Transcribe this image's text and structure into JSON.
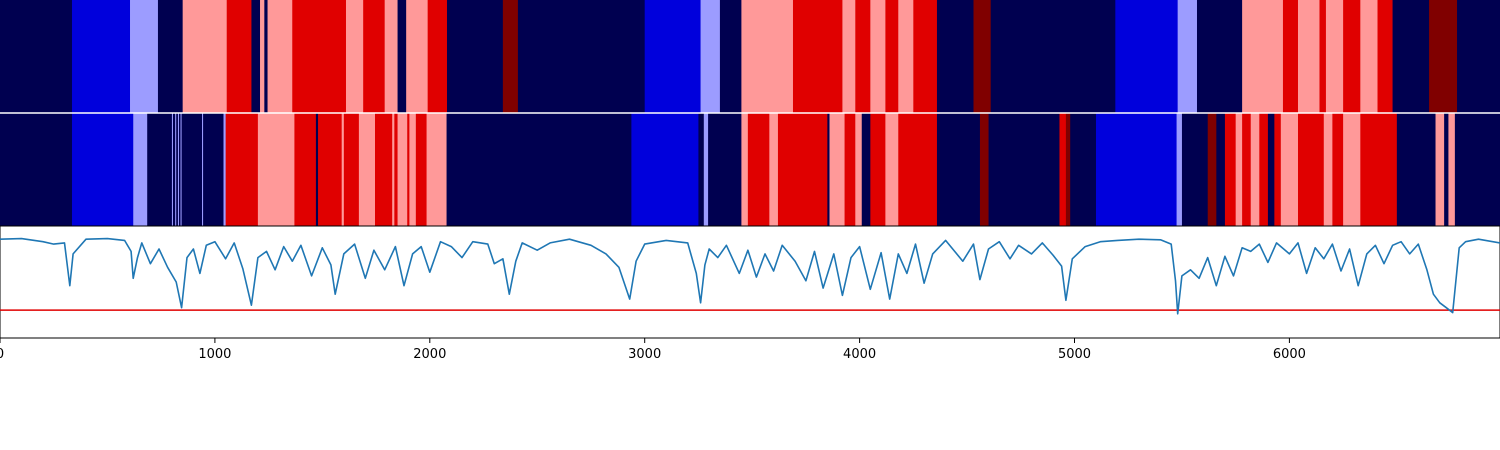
{
  "chart_data": {
    "type": "heatmap",
    "title": "",
    "xlabel": "",
    "ylabel": "",
    "xlim": [
      0,
      6980
    ],
    "x_ticks": [
      0,
      1000,
      2000,
      3000,
      4000,
      5000,
      6000
    ],
    "tick_labels": [
      "0",
      "1000",
      "2000",
      "3000",
      "4000",
      "5000",
      "6000"
    ],
    "colors": {
      "navy": "#000050",
      "blue": "#0000dc",
      "lightblue": "#9c9cff",
      "pink": "#ff9999",
      "red": "#e00000",
      "darkred": "#800000",
      "line": "#1f77b4",
      "threshold": "#e00000"
    },
    "strip_top": [
      [
        0,
        335,
        "navy"
      ],
      [
        335,
        605,
        "blue"
      ],
      [
        605,
        735,
        "lightblue"
      ],
      [
        735,
        850,
        "navy"
      ],
      [
        850,
        1055,
        "pink"
      ],
      [
        1055,
        1170,
        "red"
      ],
      [
        1170,
        1210,
        "navy"
      ],
      [
        1210,
        1230,
        "pink"
      ],
      [
        1230,
        1245,
        "navy"
      ],
      [
        1245,
        1360,
        "pink"
      ],
      [
        1360,
        1610,
        "red"
      ],
      [
        1610,
        1690,
        "pink"
      ],
      [
        1690,
        1790,
        "red"
      ],
      [
        1790,
        1850,
        "pink"
      ],
      [
        1850,
        1890,
        "navy"
      ],
      [
        1890,
        1990,
        "pink"
      ],
      [
        1990,
        2080,
        "red"
      ],
      [
        2080,
        2340,
        "navy"
      ],
      [
        2340,
        2410,
        "darkred"
      ],
      [
        2410,
        3000,
        "navy"
      ],
      [
        3000,
        3260,
        "blue"
      ],
      [
        3260,
        3350,
        "lightblue"
      ],
      [
        3350,
        3450,
        "navy"
      ],
      [
        3450,
        3690,
        "pink"
      ],
      [
        3690,
        3920,
        "red"
      ],
      [
        3920,
        3980,
        "pink"
      ],
      [
        3980,
        4050,
        "red"
      ],
      [
        4050,
        4120,
        "pink"
      ],
      [
        4120,
        4180,
        "red"
      ],
      [
        4180,
        4250,
        "pink"
      ],
      [
        4250,
        4360,
        "red"
      ],
      [
        4360,
        4530,
        "navy"
      ],
      [
        4530,
        4610,
        "darkred"
      ],
      [
        4610,
        5190,
        "navy"
      ],
      [
        5190,
        5480,
        "blue"
      ],
      [
        5480,
        5570,
        "lightblue"
      ],
      [
        5570,
        5780,
        "navy"
      ],
      [
        5780,
        5970,
        "pink"
      ],
      [
        5970,
        6040,
        "red"
      ],
      [
        6040,
        6140,
        "pink"
      ],
      [
        6140,
        6170,
        "red"
      ],
      [
        6170,
        6250,
        "pink"
      ],
      [
        6250,
        6330,
        "red"
      ],
      [
        6330,
        6410,
        "pink"
      ],
      [
        6410,
        6480,
        "red"
      ],
      [
        6480,
        6650,
        "navy"
      ],
      [
        6650,
        6780,
        "darkred"
      ],
      [
        6780,
        6980,
        "navy"
      ]
    ],
    "strip_bottom": [
      [
        0,
        335,
        "navy"
      ],
      [
        335,
        620,
        "blue"
      ],
      [
        620,
        685,
        "lightblue"
      ],
      [
        685,
        800,
        "navy"
      ],
      [
        800,
        805,
        "lightblue"
      ],
      [
        805,
        815,
        "navy"
      ],
      [
        815,
        820,
        "lightblue"
      ],
      [
        820,
        828,
        "navy"
      ],
      [
        828,
        833,
        "lightblue"
      ],
      [
        833,
        840,
        "navy"
      ],
      [
        840,
        845,
        "lightblue"
      ],
      [
        845,
        940,
        "navy"
      ],
      [
        940,
        945,
        "lightblue"
      ],
      [
        945,
        1040,
        "navy"
      ],
      [
        1040,
        1050,
        "lightblue"
      ],
      [
        1050,
        1200,
        "red"
      ],
      [
        1200,
        1370,
        "pink"
      ],
      [
        1370,
        1470,
        "red"
      ],
      [
        1470,
        1480,
        "navy"
      ],
      [
        1480,
        1590,
        "red"
      ],
      [
        1590,
        1600,
        "pink"
      ],
      [
        1600,
        1670,
        "red"
      ],
      [
        1670,
        1745,
        "pink"
      ],
      [
        1745,
        1825,
        "red"
      ],
      [
        1825,
        1835,
        "pink"
      ],
      [
        1835,
        1850,
        "red"
      ],
      [
        1850,
        1895,
        "pink"
      ],
      [
        1895,
        1905,
        "red"
      ],
      [
        1905,
        1935,
        "pink"
      ],
      [
        1935,
        1985,
        "red"
      ],
      [
        1985,
        2078,
        "pink"
      ],
      [
        2078,
        2930,
        "navy"
      ],
      [
        2930,
        2938,
        "navy"
      ],
      [
        2938,
        3250,
        "blue"
      ],
      [
        3250,
        3275,
        "navy"
      ],
      [
        3275,
        3295,
        "lightblue"
      ],
      [
        3295,
        3450,
        "navy"
      ],
      [
        3450,
        3480,
        "pink"
      ],
      [
        3480,
        3580,
        "red"
      ],
      [
        3580,
        3620,
        "pink"
      ],
      [
        3620,
        3850,
        "red"
      ],
      [
        3850,
        3860,
        "navy"
      ],
      [
        3860,
        3930,
        "pink"
      ],
      [
        3930,
        3980,
        "red"
      ],
      [
        3980,
        4010,
        "pink"
      ],
      [
        4010,
        4050,
        "navy"
      ],
      [
        4050,
        4120,
        "red"
      ],
      [
        4120,
        4180,
        "pink"
      ],
      [
        4180,
        4270,
        "red"
      ],
      [
        4270,
        4360,
        "red"
      ],
      [
        4360,
        4560,
        "navy"
      ],
      [
        4560,
        4600,
        "darkred"
      ],
      [
        4600,
        4930,
        "navy"
      ],
      [
        4930,
        4960,
        "red"
      ],
      [
        4960,
        4980,
        "darkred"
      ],
      [
        4980,
        5100,
        "navy"
      ],
      [
        5100,
        5475,
        "blue"
      ],
      [
        5475,
        5500,
        "lightblue"
      ],
      [
        5500,
        5620,
        "navy"
      ],
      [
        5620,
        5660,
        "darkred"
      ],
      [
        5660,
        5700,
        "navy"
      ],
      [
        5700,
        5750,
        "red"
      ],
      [
        5750,
        5780,
        "pink"
      ],
      [
        5780,
        5820,
        "red"
      ],
      [
        5820,
        5860,
        "pink"
      ],
      [
        5860,
        5900,
        "red"
      ],
      [
        5900,
        5930,
        "navy"
      ],
      [
        5930,
        5960,
        "red"
      ],
      [
        5960,
        6040,
        "pink"
      ],
      [
        6040,
        6160,
        "red"
      ],
      [
        6160,
        6200,
        "pink"
      ],
      [
        6200,
        6250,
        "red"
      ],
      [
        6250,
        6330,
        "pink"
      ],
      [
        6330,
        6420,
        "red"
      ],
      [
        6420,
        6500,
        "red"
      ],
      [
        6500,
        6680,
        "navy"
      ],
      [
        6680,
        6720,
        "pink"
      ],
      [
        6720,
        6740,
        "navy"
      ],
      [
        6740,
        6770,
        "pink"
      ],
      [
        6770,
        6980,
        "navy"
      ]
    ],
    "line_series": {
      "ylim": [
        -8,
        1
      ],
      "threshold": -5.8,
      "points": [
        [
          0,
          0
        ],
        [
          100,
          0.05
        ],
        [
          200,
          -0.2
        ],
        [
          250,
          -0.4
        ],
        [
          300,
          -0.3
        ],
        [
          325,
          -3.8
        ],
        [
          340,
          -1.2
        ],
        [
          400,
          0
        ],
        [
          500,
          0.05
        ],
        [
          580,
          -0.1
        ],
        [
          610,
          -1.0
        ],
        [
          620,
          -3.2
        ],
        [
          640,
          -1.5
        ],
        [
          660,
          -0.3
        ],
        [
          700,
          -2.0
        ],
        [
          740,
          -0.8
        ],
        [
          780,
          -2.3
        ],
        [
          820,
          -3.5
        ],
        [
          845,
          -5.6
        ],
        [
          870,
          -1.5
        ],
        [
          900,
          -0.8
        ],
        [
          930,
          -2.8
        ],
        [
          960,
          -0.5
        ],
        [
          1000,
          -0.2
        ],
        [
          1050,
          -1.6
        ],
        [
          1090,
          -0.3
        ],
        [
          1130,
          -2.4
        ],
        [
          1170,
          -5.4
        ],
        [
          1200,
          -1.5
        ],
        [
          1240,
          -1.0
        ],
        [
          1280,
          -2.5
        ],
        [
          1320,
          -0.6
        ],
        [
          1360,
          -1.8
        ],
        [
          1400,
          -0.5
        ],
        [
          1450,
          -3.0
        ],
        [
          1500,
          -0.7
        ],
        [
          1540,
          -2.1
        ],
        [
          1560,
          -4.5
        ],
        [
          1600,
          -1.2
        ],
        [
          1650,
          -0.4
        ],
        [
          1700,
          -3.2
        ],
        [
          1740,
          -0.9
        ],
        [
          1790,
          -2.5
        ],
        [
          1840,
          -0.6
        ],
        [
          1880,
          -3.8
        ],
        [
          1920,
          -1.2
        ],
        [
          1960,
          -0.6
        ],
        [
          2000,
          -2.7
        ],
        [
          2050,
          -0.2
        ],
        [
          2100,
          -0.6
        ],
        [
          2150,
          -1.5
        ],
        [
          2200,
          -0.2
        ],
        [
          2270,
          -0.4
        ],
        [
          2300,
          -2.0
        ],
        [
          2340,
          -1.6
        ],
        [
          2370,
          -4.5
        ],
        [
          2400,
          -1.8
        ],
        [
          2430,
          -0.3
        ],
        [
          2500,
          -0.9
        ],
        [
          2560,
          -0.3
        ],
        [
          2650,
          0
        ],
        [
          2750,
          -0.5
        ],
        [
          2820,
          -1.2
        ],
        [
          2880,
          -2.3
        ],
        [
          2930,
          -4.9
        ],
        [
          2960,
          -1.8
        ],
        [
          3000,
          -0.4
        ],
        [
          3100,
          -0.1
        ],
        [
          3200,
          -0.3
        ],
        [
          3240,
          -2.8
        ],
        [
          3260,
          -5.2
        ],
        [
          3280,
          -2.1
        ],
        [
          3300,
          -0.8
        ],
        [
          3340,
          -1.5
        ],
        [
          3380,
          -0.5
        ],
        [
          3440,
          -2.8
        ],
        [
          3480,
          -0.9
        ],
        [
          3520,
          -3.1
        ],
        [
          3560,
          -1.2
        ],
        [
          3600,
          -2.6
        ],
        [
          3640,
          -0.5
        ],
        [
          3700,
          -1.8
        ],
        [
          3750,
          -3.4
        ],
        [
          3790,
          -1.0
        ],
        [
          3830,
          -4.0
        ],
        [
          3880,
          -1.2
        ],
        [
          3920,
          -4.6
        ],
        [
          3960,
          -1.5
        ],
        [
          4000,
          -0.6
        ],
        [
          4050,
          -4.1
        ],
        [
          4100,
          -1.1
        ],
        [
          4140,
          -4.9
        ],
        [
          4180,
          -1.2
        ],
        [
          4220,
          -2.8
        ],
        [
          4260,
          -0.4
        ],
        [
          4300,
          -3.6
        ],
        [
          4340,
          -1.2
        ],
        [
          4400,
          -0.1
        ],
        [
          4480,
          -1.8
        ],
        [
          4530,
          -0.4
        ],
        [
          4560,
          -3.3
        ],
        [
          4600,
          -0.8
        ],
        [
          4650,
          -0.2
        ],
        [
          4700,
          -1.6
        ],
        [
          4740,
          -0.5
        ],
        [
          4800,
          -1.2
        ],
        [
          4850,
          -0.3
        ],
        [
          4900,
          -1.3
        ],
        [
          4940,
          -2.2
        ],
        [
          4960,
          -5.0
        ],
        [
          4990,
          -1.6
        ],
        [
          5050,
          -0.6
        ],
        [
          5120,
          -0.2
        ],
        [
          5200,
          -0.1
        ],
        [
          5300,
          0
        ],
        [
          5400,
          -0.05
        ],
        [
          5450,
          -0.4
        ],
        [
          5470,
          -3.4
        ],
        [
          5480,
          -6.1
        ],
        [
          5500,
          -3.0
        ],
        [
          5540,
          -2.5
        ],
        [
          5580,
          -3.2
        ],
        [
          5620,
          -1.5
        ],
        [
          5660,
          -3.8
        ],
        [
          5700,
          -1.4
        ],
        [
          5740,
          -3.0
        ],
        [
          5780,
          -0.7
        ],
        [
          5820,
          -1.0
        ],
        [
          5860,
          -0.4
        ],
        [
          5900,
          -1.9
        ],
        [
          5940,
          -0.3
        ],
        [
          6000,
          -1.2
        ],
        [
          6040,
          -0.3
        ],
        [
          6080,
          -2.8
        ],
        [
          6120,
          -0.7
        ],
        [
          6160,
          -1.6
        ],
        [
          6200,
          -0.4
        ],
        [
          6240,
          -2.6
        ],
        [
          6280,
          -0.8
        ],
        [
          6320,
          -3.8
        ],
        [
          6360,
          -1.2
        ],
        [
          6400,
          -0.5
        ],
        [
          6440,
          -2.0
        ],
        [
          6480,
          -0.5
        ],
        [
          6520,
          -0.2
        ],
        [
          6560,
          -1.2
        ],
        [
          6600,
          -0.4
        ],
        [
          6640,
          -2.5
        ],
        [
          6670,
          -4.5
        ],
        [
          6700,
          -5.2
        ],
        [
          6730,
          -5.6
        ],
        [
          6760,
          -6.0
        ],
        [
          6790,
          -0.7
        ],
        [
          6820,
          -0.2
        ],
        [
          6880,
          0
        ],
        [
          6980,
          -0.3
        ]
      ]
    }
  }
}
